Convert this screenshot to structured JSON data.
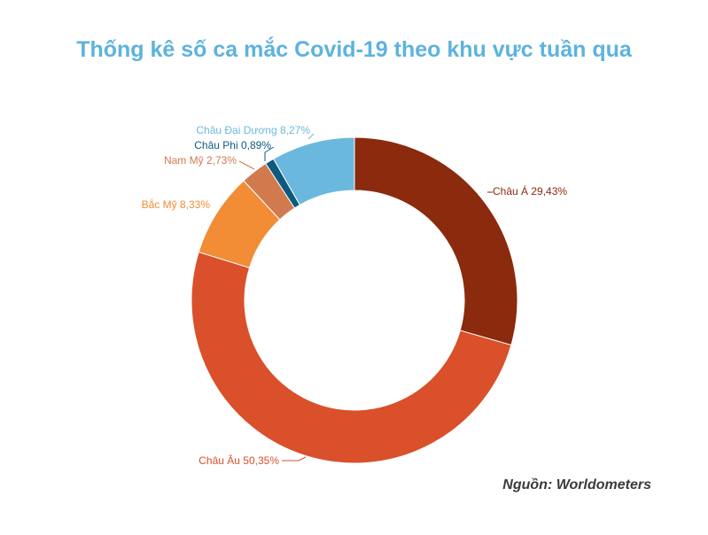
{
  "title": "Thống kê số ca mắc Covid-19 theo khu vực tuần qua",
  "source": "Nguồn: Worldometers",
  "chart_data": {
    "type": "pie",
    "donut": true,
    "title": "Thống kê số ca mắc Covid-19 theo khu vực tuần qua",
    "unit": "%",
    "slices": [
      {
        "name": "Châu Á",
        "value": 29.43,
        "label": "Châu Á 29,43%",
        "color": "#8b2a0d"
      },
      {
        "name": "Châu Âu",
        "value": 50.35,
        "label": "Châu Âu 50,35%",
        "color": "#d9502a"
      },
      {
        "name": "Bắc Mỹ",
        "value": 8.33,
        "label": "Bắc Mỹ 8,33%",
        "color": "#f28c35"
      },
      {
        "name": "Nam Mỹ",
        "value": 2.73,
        "label": "Nam Mỹ 2,73%",
        "color": "#d07a4e"
      },
      {
        "name": "Châu Phi",
        "value": 0.89,
        "label": "Châu Phi  0,89%",
        "color": "#0e5a7f"
      },
      {
        "name": "Châu Đại Dương",
        "value": 8.27,
        "label": "Châu Đại Dương 8,27%",
        "color": "#6bb8de"
      }
    ]
  }
}
